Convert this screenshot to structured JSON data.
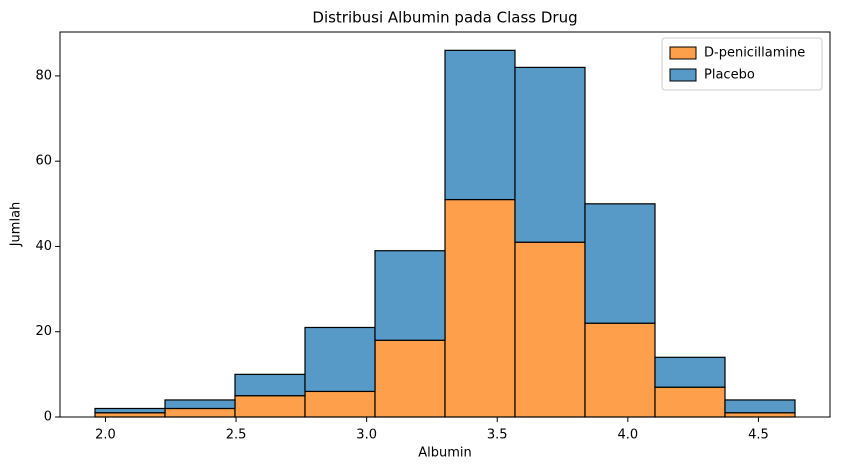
{
  "chart_data": {
    "type": "histogram",
    "title": "Distribusi Albumin pada Class Drug",
    "xlabel": "Albumin",
    "ylabel": "Jumlah",
    "bins": [
      1.96,
      2.228,
      2.496,
      2.764,
      3.032,
      3.3,
      3.568,
      3.836,
      4.104,
      4.372,
      4.64
    ],
    "series": [
      {
        "name": "D-penicillamine",
        "color": "#fd9f4b",
        "values": [
          1,
          2,
          5,
          6,
          18,
          51,
          41,
          22,
          7,
          1
        ]
      },
      {
        "name": "Placebo",
        "color": "#5799c7",
        "values": [
          1,
          2,
          5,
          15,
          21,
          35,
          41,
          28,
          7,
          3
        ]
      }
    ],
    "stacked": true,
    "xlim": [
      1.826,
      4.774
    ],
    "ylim": [
      0,
      90.3
    ],
    "xticks": [
      {
        "value": 2,
        "label": "2.0"
      },
      {
        "value": 2.5,
        "label": "2.5"
      },
      {
        "value": 3,
        "label": "3.0"
      },
      {
        "value": 3.5,
        "label": "3.5"
      },
      {
        "value": 4,
        "label": "4.0"
      },
      {
        "value": 4.5,
        "label": "4.5"
      }
    ],
    "yticks": [
      0,
      20,
      40,
      60,
      80
    ],
    "legend": "upper right"
  }
}
